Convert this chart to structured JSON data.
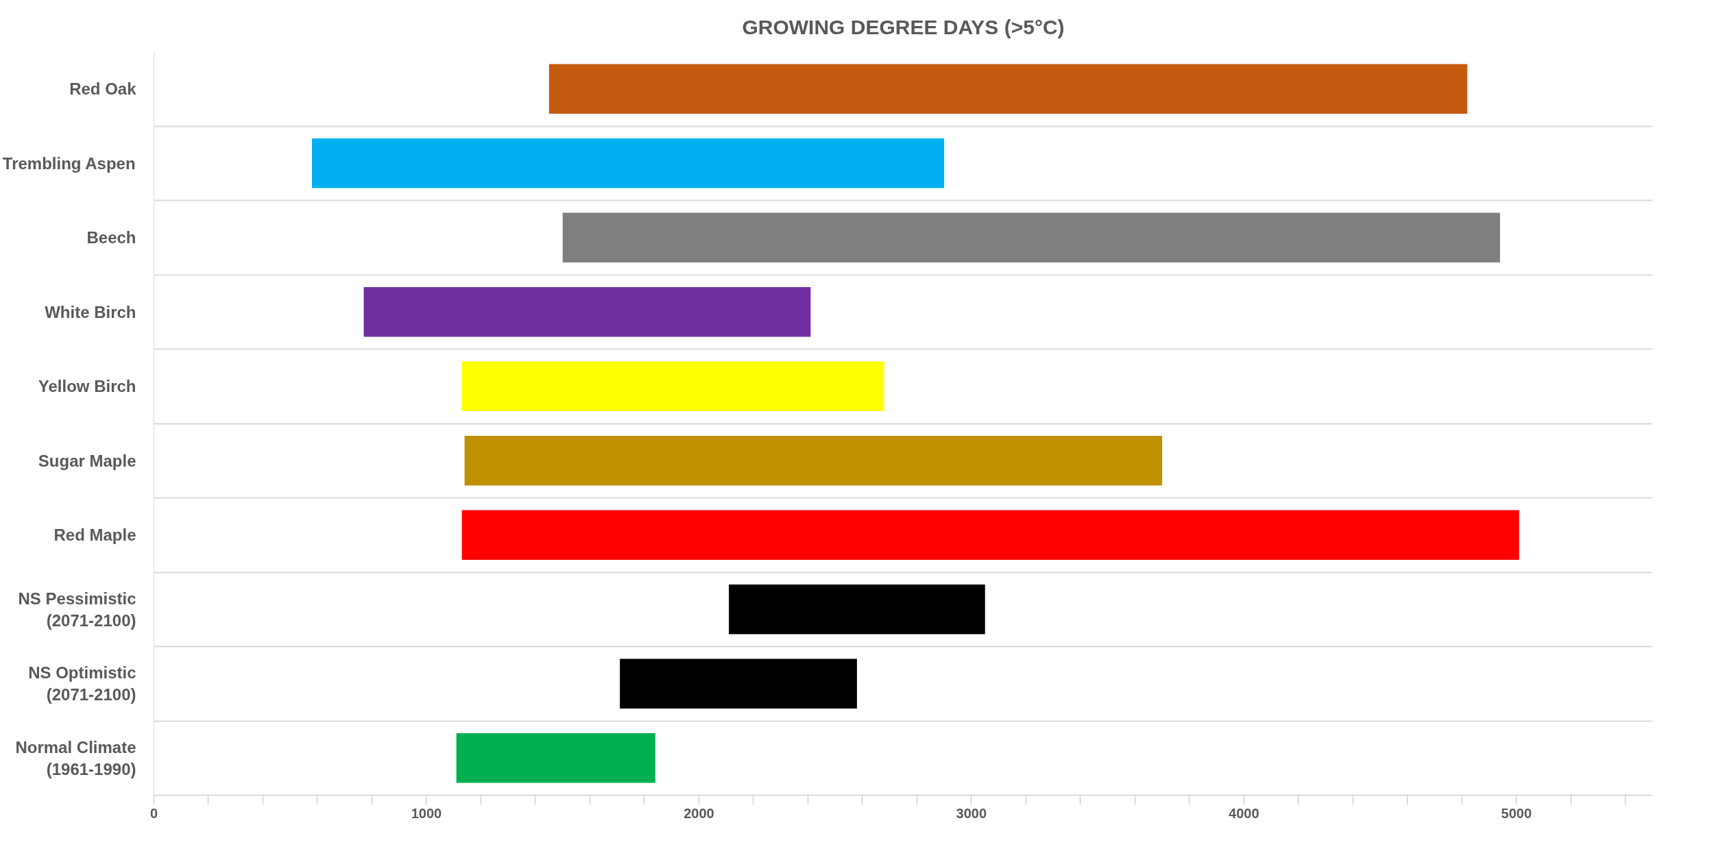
{
  "chart_data": {
    "type": "bar",
    "orientation": "horizontal",
    "title": "GROWING DEGREE DAYS (>5°C)",
    "categories": [
      "Red Oak",
      "Trembling Aspen",
      "Beech",
      "White Birch",
      "Yellow Birch",
      "Sugar Maple",
      "Red Maple",
      "NS Pessimistic\n(2071-2100)",
      "NS Optimistic\n(2071-2100)",
      "Normal Climate\n(1961-1990)"
    ],
    "base": [
      1450,
      580,
      1500,
      770,
      1130,
      1140,
      1130,
      2110,
      1710,
      1110
    ],
    "values": [
      3370,
      2320,
      3440,
      1640,
      1550,
      2560,
      3880,
      940,
      870,
      730
    ],
    "colors": [
      "#c55a11",
      "#00b0f0",
      "#7f7f7f",
      "#7030a0",
      "#ffff00",
      "#bf9000",
      "#ff0000",
      "#000000",
      "#000000",
      "#00b050"
    ],
    "xlim": [
      0,
      5500
    ],
    "xticks": [
      0,
      {
        "value": 200,
        "label": null
      },
      {
        "value": 400,
        "label": null
      },
      {
        "value": 600,
        "label": null
      },
      {
        "value": 800,
        "label": null
      },
      1000,
      {
        "value": 1200,
        "label": null
      },
      {
        "value": 1400,
        "label": null
      },
      {
        "value": 1600,
        "label": null
      },
      {
        "value": 1800,
        "label": null
      },
      2000,
      {
        "value": 2200,
        "label": null
      },
      {
        "value": 2400,
        "label": null
      },
      {
        "value": 2600,
        "label": null
      },
      {
        "value": 2800,
        "label": null
      },
      3000,
      {
        "value": 3200,
        "label": null
      },
      {
        "value": 3400,
        "label": null
      },
      {
        "value": 3600,
        "label": null
      },
      {
        "value": 3800,
        "label": null
      },
      4000,
      {
        "value": 4200,
        "label": null
      },
      {
        "value": 4400,
        "label": null
      },
      {
        "value": 4600,
        "label": null
      },
      {
        "value": 4800,
        "label": null
      },
      5000,
      {
        "value": 5200,
        "label": null
      },
      {
        "value": 5400,
        "label": null
      }
    ],
    "grid": "y"
  }
}
